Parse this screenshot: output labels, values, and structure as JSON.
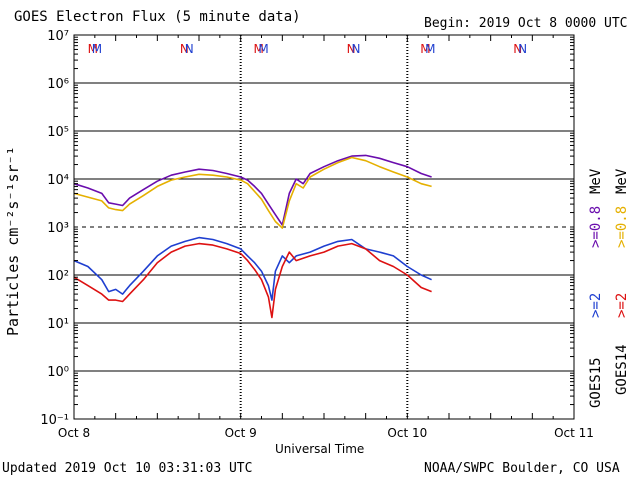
{
  "header": {
    "title": "GOES Electron Flux (5 minute data)",
    "begin": "Begin: 2019 Oct 8 0000 UTC"
  },
  "footer": {
    "updated": "Updated 2019 Oct 10 03:31:03 UTC",
    "credit": "NOAA/SWPC Boulder, CO USA"
  },
  "colors": {
    "goes15_high": "#6a0dad",
    "goes14_high": "#e5b000",
    "goes15_low": "#1f3fd0",
    "goes14_low": "#dd1111"
  },
  "chart_data": {
    "type": "line",
    "xlabel": "Universal Time",
    "ylabel": "Particles cm⁻²s⁻¹sr⁻¹",
    "x_ticks": [
      "Oct 8",
      "Oct 9",
      "Oct 10",
      "Oct 11"
    ],
    "xlim_hours": [
      0,
      72
    ],
    "y_ticks": [
      "10⁻¹",
      "10⁰",
      "10¹",
      "10²",
      "10³",
      "10⁴",
      "10⁵",
      "10⁶",
      "10⁷"
    ],
    "ylim_log10": [
      -1,
      7
    ],
    "log_scale": true,
    "threshold_line": 1000,
    "markers": [
      {
        "label": "M",
        "hour": 2.7,
        "color": "#dd1111"
      },
      {
        "label": "M",
        "hour": 3.3,
        "color": "#1f3fd0"
      },
      {
        "label": "N",
        "hour": 15.9,
        "color": "#dd1111"
      },
      {
        "label": "N",
        "hour": 16.6,
        "color": "#1f3fd0"
      },
      {
        "label": "M",
        "hour": 26.6,
        "color": "#dd1111"
      },
      {
        "label": "M",
        "hour": 27.3,
        "color": "#1f3fd0"
      },
      {
        "label": "N",
        "hour": 39.9,
        "color": "#dd1111"
      },
      {
        "label": "N",
        "hour": 40.6,
        "color": "#1f3fd0"
      },
      {
        "label": "M",
        "hour": 50.6,
        "color": "#dd1111"
      },
      {
        "label": "M",
        "hour": 51.3,
        "color": "#1f3fd0"
      },
      {
        "label": "N",
        "hour": 63.9,
        "color": "#dd1111"
      },
      {
        "label": "N",
        "hour": 64.6,
        "color": "#1f3fd0"
      }
    ],
    "legend": {
      "satellites": [
        "GOES15",
        "GOES14"
      ],
      "goes15_low": ">=2",
      "goes15_high": ">=0.8",
      "goes14_low": ">=2",
      "goes14_high": ">=0.8",
      "unit": "MeV"
    },
    "series": [
      {
        "name": ">=0.8 MeV",
        "satellite": "GOES15",
        "color": "#6a0dad",
        "x": [
          0,
          2,
          4,
          5,
          6,
          7,
          8,
          10,
          12,
          14,
          16,
          18,
          20,
          22,
          24,
          25,
          26,
          27,
          28,
          29,
          30,
          31,
          32,
          33,
          34,
          36,
          38,
          40,
          42,
          44,
          46,
          48,
          50,
          51.5
        ],
        "y": [
          8000,
          6500,
          5000,
          3200,
          3000,
          2800,
          4000,
          6000,
          9000,
          12000,
          14000,
          16000,
          15000,
          13000,
          11000,
          9500,
          7000,
          5000,
          3000,
          1800,
          1100,
          5000,
          10000,
          8000,
          13000,
          18000,
          24000,
          30000,
          31000,
          27000,
          22000,
          18000,
          13000,
          11000
        ]
      },
      {
        "name": ">=0.8 MeV",
        "satellite": "GOES14",
        "color": "#e5b000",
        "x": [
          0,
          2,
          4,
          5,
          6,
          7,
          8,
          10,
          12,
          14,
          16,
          18,
          20,
          22,
          24,
          25,
          26,
          27,
          28,
          29,
          30,
          31,
          32,
          33,
          34,
          36,
          38,
          40,
          42,
          44,
          46,
          48,
          50,
          51.5
        ],
        "y": [
          5000,
          4200,
          3500,
          2500,
          2300,
          2200,
          3000,
          4500,
          7000,
          9500,
          11000,
          12500,
          12000,
          11000,
          9500,
          8000,
          5500,
          3800,
          2200,
          1300,
          950,
          3500,
          8000,
          6500,
          11000,
          16000,
          22000,
          28000,
          24000,
          18000,
          14000,
          11000,
          8000,
          7000
        ]
      },
      {
        "name": ">=2 MeV",
        "satellite": "GOES15",
        "color": "#1f3fd0",
        "x": [
          0,
          2,
          4,
          5,
          6,
          7,
          8,
          10,
          12,
          14,
          16,
          18,
          20,
          22,
          24,
          25,
          26,
          27,
          28,
          28.5,
          29,
          30,
          31,
          32,
          34,
          36,
          38,
          40,
          42,
          44,
          46,
          48,
          50,
          51.5
        ],
        "y": [
          200,
          150,
          80,
          45,
          50,
          40,
          60,
          120,
          250,
          400,
          500,
          600,
          550,
          450,
          350,
          250,
          180,
          120,
          60,
          30,
          120,
          250,
          180,
          250,
          300,
          400,
          500,
          550,
          350,
          300,
          250,
          150,
          100,
          80
        ]
      },
      {
        "name": ">=2 MeV",
        "satellite": "GOES14",
        "color": "#dd1111",
        "x": [
          0,
          2,
          4,
          5,
          6,
          7,
          8,
          10,
          12,
          14,
          16,
          18,
          20,
          22,
          24,
          25,
          26,
          27,
          28,
          28.5,
          29,
          30,
          31,
          32,
          34,
          36,
          38,
          40,
          42,
          44,
          46,
          48,
          50,
          51.5
        ],
        "y": [
          90,
          60,
          40,
          30,
          30,
          28,
          40,
          80,
          180,
          300,
          400,
          450,
          420,
          350,
          280,
          200,
          130,
          80,
          35,
          13,
          50,
          150,
          300,
          200,
          250,
          300,
          400,
          450,
          350,
          200,
          150,
          100,
          55,
          45
        ]
      }
    ]
  }
}
